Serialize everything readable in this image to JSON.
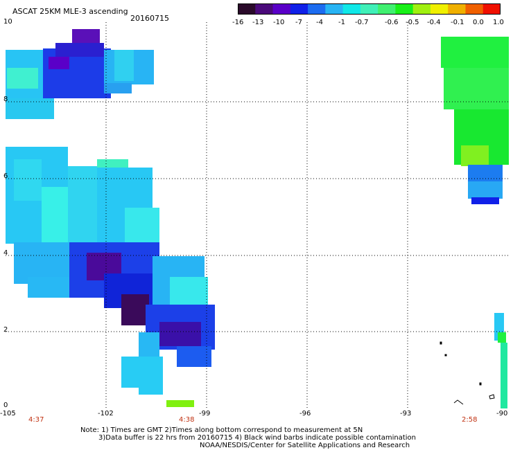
{
  "header": {
    "title": "ASCAT 25KM MLE-3 ascending",
    "date": "20160715"
  },
  "colorbar": {
    "colors": [
      "#2a0a2a",
      "#4a0a7a",
      "#5a00c8",
      "#1020e8",
      "#1c6cf0",
      "#28b4f4",
      "#10e8e8",
      "#40f0b8",
      "#40f070",
      "#18f018",
      "#a0f010",
      "#f0f000",
      "#f0b000",
      "#f06000",
      "#f01000"
    ],
    "tick_labels": [
      "-16",
      "-13",
      "-10",
      "-7",
      "-4",
      "-1",
      "-0.7",
      "-0.6",
      "-0.5",
      "-0.4",
      "-0.1",
      "0.0",
      "1.0"
    ]
  },
  "axes": {
    "y_labels": [
      "10",
      "8",
      "6",
      "4",
      "2",
      "0"
    ],
    "x_labels": [
      "-105",
      "-102",
      "-99",
      "-96",
      "-93",
      "-90"
    ],
    "gridlines": "dotted",
    "lon_range": [
      -105,
      -90
    ],
    "lat_range": [
      0,
      10
    ]
  },
  "times": [
    "4:37",
    "4:38",
    "2:58"
  ],
  "notes": {
    "line1": "Note: 1) Times are GMT 2)Times along bottom correspond to measurement at 5N",
    "line2": "3)Data buffer is 22 hrs from 20160715 4) Black wind barbs indicate possible contamination",
    "line3": "NOAA/NESDIS/Center for Satellite Applications and Research"
  }
}
